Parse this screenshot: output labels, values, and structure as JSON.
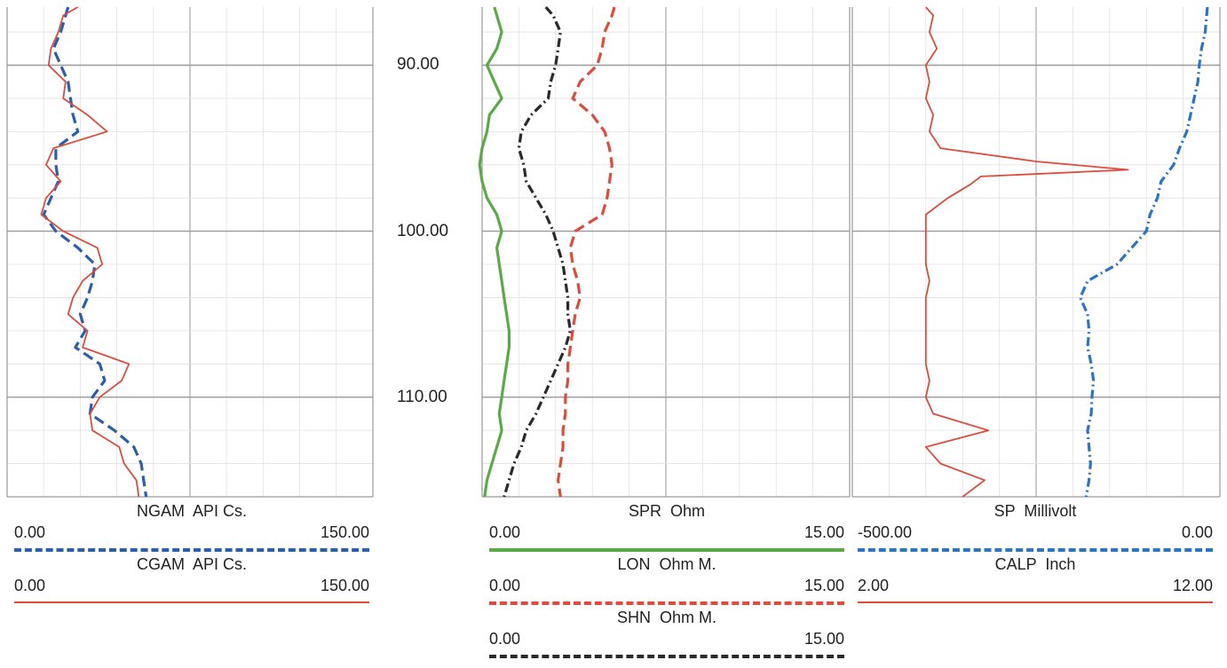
{
  "chart_data": {
    "type": "line",
    "depth_axis": {
      "ylim": [
        86.5,
        116.0
      ],
      "ticks": [
        90,
        100,
        110
      ],
      "tick_labels": [
        "90.00",
        "100.00",
        "110.00"
      ]
    },
    "tracks": [
      {
        "name": "track-1",
        "scale": [
          0,
          150
        ],
        "series": [
          {
            "name": "NGAM",
            "unit": "API Cs.",
            "min_label": "0.00",
            "max_label": "150.00",
            "min": 0,
            "max": 150,
            "color": "#2b5fae",
            "style": "dashed",
            "values": [
              [
                86.5,
                25
              ],
              [
                87,
                24
              ],
              [
                88,
                22
              ],
              [
                89,
                19
              ],
              [
                90,
                22
              ],
              [
                91,
                25
              ],
              [
                92,
                26
              ],
              [
                93,
                27
              ],
              [
                94,
                29
              ],
              [
                95,
                20
              ],
              [
                96,
                20
              ],
              [
                97,
                21
              ],
              [
                98,
                18
              ],
              [
                99,
                15
              ],
              [
                100,
                20
              ],
              [
                101,
                29
              ],
              [
                102,
                36
              ],
              [
                103,
                35
              ],
              [
                104,
                33
              ],
              [
                105,
                30
              ],
              [
                106,
                32
              ],
              [
                107,
                28
              ],
              [
                108,
                38
              ],
              [
                109,
                40
              ],
              [
                110,
                35
              ],
              [
                111,
                34
              ],
              [
                112,
                44
              ],
              [
                113,
                52
              ],
              [
                114,
                55
              ],
              [
                115,
                56
              ],
              [
                116,
                57
              ]
            ]
          },
          {
            "name": "CGAM",
            "unit": "API Cs.",
            "min_label": "0.00",
            "max_label": "150.00",
            "min": 0,
            "max": 150,
            "color": "#e04b3c",
            "style": "solid",
            "values": [
              [
                86.5,
                29
              ],
              [
                87,
                23
              ],
              [
                88,
                21
              ],
              [
                89,
                18
              ],
              [
                90,
                17
              ],
              [
                91,
                24
              ],
              [
                92,
                23
              ],
              [
                93,
                33
              ],
              [
                94,
                41
              ],
              [
                95,
                19
              ],
              [
                96,
                16
              ],
              [
                97,
                22
              ],
              [
                98,
                16
              ],
              [
                99,
                14
              ],
              [
                100,
                23
              ],
              [
                101,
                37
              ],
              [
                102,
                39
              ],
              [
                103,
                31
              ],
              [
                104,
                27
              ],
              [
                105,
                25
              ],
              [
                106,
                33
              ],
              [
                107,
                31
              ],
              [
                108,
                50
              ],
              [
                109,
                47
              ],
              [
                110,
                38
              ],
              [
                111,
                34
              ],
              [
                112,
                35
              ],
              [
                113,
                46
              ],
              [
                114,
                48
              ],
              [
                115,
                53
              ],
              [
                116,
                54
              ]
            ]
          }
        ]
      },
      {
        "name": "track-2",
        "scale": [
          0,
          15
        ],
        "series": [
          {
            "name": "SPR",
            "unit": "Ohm",
            "min_label": "0.00",
            "max_label": "15.00",
            "min": 0,
            "max": 15,
            "color": "#5aaa46",
            "style": "solid",
            "values": [
              [
                86.5,
                0.5
              ],
              [
                87,
                0.6
              ],
              [
                88,
                0.8
              ],
              [
                89,
                0.6
              ],
              [
                90,
                0.2
              ],
              [
                91,
                0.5
              ],
              [
                92,
                0.8
              ],
              [
                93,
                0.3
              ],
              [
                94,
                0.2
              ],
              [
                95,
                0.0
              ],
              [
                96,
                -0.1
              ],
              [
                97,
                0.0
              ],
              [
                98,
                0.2
              ],
              [
                99,
                0.6
              ],
              [
                100,
                0.8
              ],
              [
                101,
                0.6
              ],
              [
                102,
                0.7
              ],
              [
                103,
                0.8
              ],
              [
                104,
                0.9
              ],
              [
                105,
                1.0
              ],
              [
                106,
                1.1
              ],
              [
                107,
                1.1
              ],
              [
                108,
                1.0
              ],
              [
                109,
                0.9
              ],
              [
                110,
                0.8
              ],
              [
                111,
                0.7
              ],
              [
                112,
                0.8
              ],
              [
                113,
                0.6
              ],
              [
                114,
                0.4
              ],
              [
                115,
                0.2
              ],
              [
                116,
                0.1
              ]
            ]
          },
          {
            "name": "LON",
            "unit": "Ohm M.",
            "min_label": "0.00",
            "max_label": "15.00",
            "min": 0,
            "max": 15,
            "color": "#e04b3c",
            "style": "dashed",
            "values": [
              [
                86.5,
                5.4
              ],
              [
                87,
                5.3
              ],
              [
                88,
                5.0
              ],
              [
                89,
                4.9
              ],
              [
                90,
                4.7
              ],
              [
                91,
                4.0
              ],
              [
                92,
                3.7
              ],
              [
                93,
                4.5
              ],
              [
                94,
                5.0
              ],
              [
                95,
                5.2
              ],
              [
                96,
                5.3
              ],
              [
                97,
                5.2
              ],
              [
                98,
                5.1
              ],
              [
                99,
                4.9
              ],
              [
                100,
                3.8
              ],
              [
                101,
                3.6
              ],
              [
                102,
                3.7
              ],
              [
                103,
                3.9
              ],
              [
                104,
                4.0
              ],
              [
                105,
                3.8
              ],
              [
                106,
                3.7
              ],
              [
                107,
                3.6
              ],
              [
                108,
                3.5
              ],
              [
                109,
                3.5
              ],
              [
                110,
                3.4
              ],
              [
                111,
                3.4
              ],
              [
                112,
                3.3
              ],
              [
                113,
                3.3
              ],
              [
                114,
                3.2
              ],
              [
                115,
                3.1
              ],
              [
                116,
                3.2
              ]
            ]
          },
          {
            "name": "SHN",
            "unit": "Ohm M.",
            "min_label": "0.00",
            "max_label": "15.00",
            "min": 0,
            "max": 15,
            "color": "#2a2a2a",
            "style": "dashdot",
            "values": [
              [
                86.5,
                2.6
              ],
              [
                87,
                2.9
              ],
              [
                88,
                3.2
              ],
              [
                89,
                3.1
              ],
              [
                90,
                3.0
              ],
              [
                91,
                2.8
              ],
              [
                92,
                2.7
              ],
              [
                93,
                2.0
              ],
              [
                94,
                1.6
              ],
              [
                95,
                1.5
              ],
              [
                96,
                1.7
              ],
              [
                97,
                1.8
              ],
              [
                98,
                2.2
              ],
              [
                99,
                2.6
              ],
              [
                100,
                2.9
              ],
              [
                101,
                3.1
              ],
              [
                102,
                3.3
              ],
              [
                103,
                3.4
              ],
              [
                104,
                3.5
              ],
              [
                105,
                3.5
              ],
              [
                106,
                3.6
              ],
              [
                107,
                3.4
              ],
              [
                108,
                3.1
              ],
              [
                109,
                2.8
              ],
              [
                110,
                2.5
              ],
              [
                111,
                2.2
              ],
              [
                112,
                1.8
              ],
              [
                113,
                1.6
              ],
              [
                114,
                1.3
              ],
              [
                115,
                1.1
              ],
              [
                116,
                0.9
              ]
            ]
          }
        ]
      },
      {
        "name": "track-3",
        "scale": [
          0,
          1
        ],
        "series": [
          {
            "name": "SP",
            "unit": "Millivolt",
            "min_label": "-500.00",
            "max_label": "0.00",
            "min": -500,
            "max": 0,
            "color": "#2b74c6",
            "style": "dashdot",
            "values": [
              [
                86.5,
                -17
              ],
              [
                87,
                -18
              ],
              [
                88,
                -20
              ],
              [
                89,
                -25
              ],
              [
                90,
                -28
              ],
              [
                91,
                -30
              ],
              [
                92,
                -35
              ],
              [
                93,
                -40
              ],
              [
                94,
                -45
              ],
              [
                95,
                -55
              ],
              [
                96,
                -63
              ],
              [
                97,
                -80
              ],
              [
                98,
                -85
              ],
              [
                99,
                -95
              ],
              [
                100,
                -100
              ],
              [
                101,
                -120
              ],
              [
                102,
                -140
              ],
              [
                103,
                -180
              ],
              [
                104,
                -190
              ],
              [
                105,
                -180
              ],
              [
                106,
                -178
              ],
              [
                107,
                -180
              ],
              [
                108,
                -175
              ],
              [
                109,
                -172
              ],
              [
                110,
                -174
              ],
              [
                111,
                -175
              ],
              [
                112,
                -180
              ],
              [
                113,
                -178
              ],
              [
                114,
                -176
              ],
              [
                115,
                -178
              ],
              [
                116,
                -182
              ]
            ]
          },
          {
            "name": "CALP",
            "unit": "Inch",
            "min_label": "2.00",
            "max_label": "12.00",
            "min": 2,
            "max": 12,
            "color": "#e04b3c",
            "style": "solid",
            "values": [
              [
                86.5,
                4.0
              ],
              [
                87,
                4.2
              ],
              [
                88,
                4.1
              ],
              [
                89,
                4.3
              ],
              [
                90,
                4.0
              ],
              [
                91,
                4.1
              ],
              [
                92,
                4.0
              ],
              [
                93,
                4.2
              ],
              [
                94,
                4.1
              ],
              [
                95,
                4.4
              ],
              [
                95.8,
                7.0
              ],
              [
                96.3,
                9.5
              ],
              [
                96.7,
                5.5
              ],
              [
                97.2,
                5.2
              ],
              [
                98,
                4.6
              ],
              [
                99,
                4.0
              ],
              [
                100,
                4.0
              ],
              [
                101,
                4.0
              ],
              [
                102,
                4.0
              ],
              [
                103,
                4.1
              ],
              [
                104,
                4.0
              ],
              [
                105,
                4.0
              ],
              [
                106,
                4.0
              ],
              [
                107,
                4.0
              ],
              [
                108,
                4.0
              ],
              [
                109,
                4.1
              ],
              [
                110,
                4.0
              ],
              [
                111,
                4.2
              ],
              [
                112,
                5.7
              ],
              [
                113,
                4.0
              ],
              [
                114,
                4.4
              ],
              [
                115,
                5.6
              ],
              [
                116,
                5.0
              ]
            ]
          }
        ]
      }
    ]
  }
}
